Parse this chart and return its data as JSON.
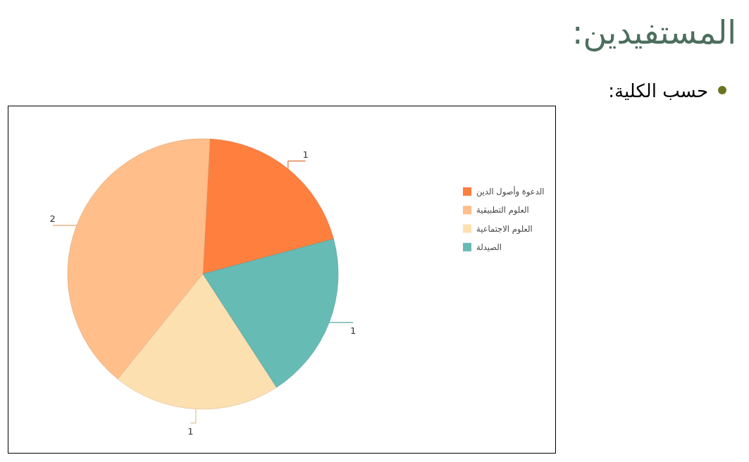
{
  "chart_data": {
    "type": "pie",
    "title": "المستفيدين:",
    "subtitle": "حسب الكلية:",
    "categories": [
      "الدعوة وأصول الدين",
      "العلوم التطبيقية",
      "العلوم الاجتماعية",
      "الصيدلة"
    ],
    "values": [
      1,
      2,
      1,
      1
    ],
    "colors": [
      "#ff7f3f",
      "#ffbe8a",
      "#fde0b0",
      "#66bbb5"
    ],
    "data_labels": true,
    "legend": "right"
  }
}
